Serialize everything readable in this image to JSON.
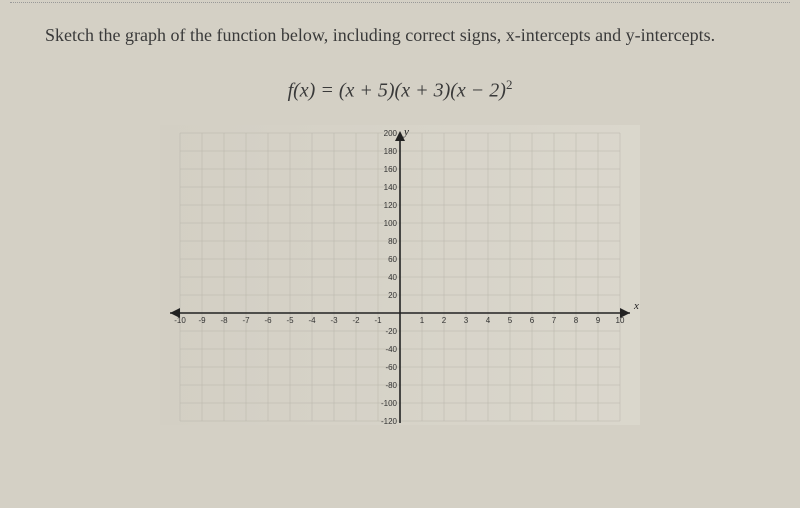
{
  "prompt": "Sketch the graph of the function below, including correct signs, x-intercepts and y-intercepts.",
  "equation": {
    "lhs": "f(x)",
    "rhs_parts": [
      "(x + 5)",
      "(x + 3)",
      "(x − 2)"
    ],
    "exponent": "2"
  },
  "graph": {
    "axis_label_x": "x",
    "axis_label_y": "y",
    "x": {
      "min": -10,
      "max": 10,
      "step": 1,
      "ticks": [
        "-10",
        "-9",
        "-8",
        "-7",
        "-6",
        "-5",
        "-4",
        "-3",
        "-2",
        "-1",
        "1",
        "2",
        "3",
        "4",
        "5",
        "6",
        "7",
        "8",
        "9",
        "10"
      ]
    },
    "y": {
      "min": -120,
      "max": 200,
      "step": 20,
      "ticks_pos": [
        "20",
        "40",
        "60",
        "80",
        "100",
        "120",
        "140",
        "160",
        "180",
        "200"
      ],
      "ticks_neg": [
        "-20",
        "-40",
        "-60",
        "-80",
        "-100",
        "-120"
      ]
    },
    "grid_color": "#b8b5aa",
    "axis_color": "#222222",
    "background": "#d9d6cb"
  }
}
